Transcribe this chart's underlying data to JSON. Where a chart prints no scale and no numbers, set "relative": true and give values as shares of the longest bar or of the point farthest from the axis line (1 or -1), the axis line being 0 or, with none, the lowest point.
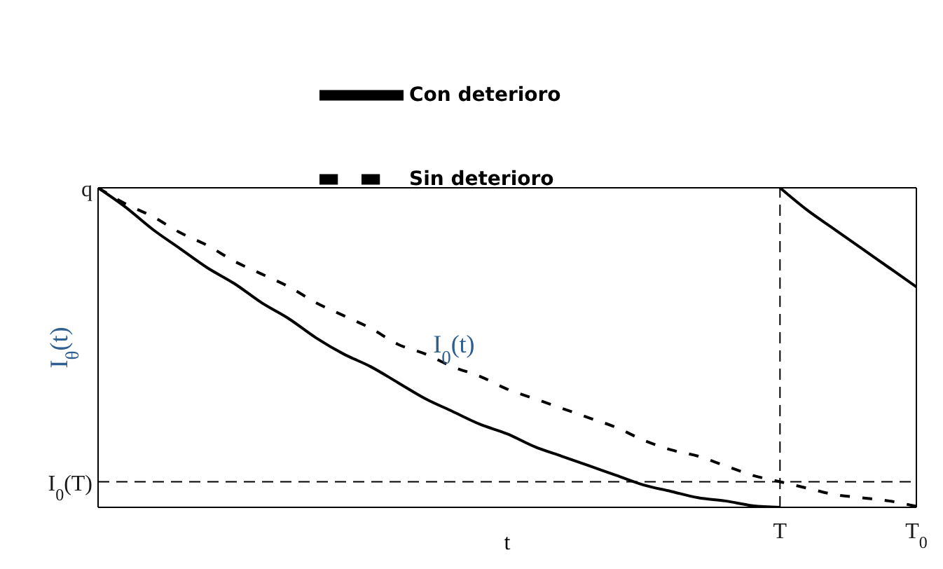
{
  "chart_data": {
    "type": "line",
    "relative": true,
    "xlabel": "t",
    "ylabel": "I$_{θ}$(t)",
    "categories": [
      null,
      null,
      null,
      null,
      null,
      null,
      null,
      null,
      null,
      null,
      null,
      null,
      null,
      null,
      null,
      null,
      null,
      null,
      null,
      null,
      null,
      null,
      null,
      null,
      null,
      "T",
      null,
      null,
      null,
      null,
      "T$_{0}$"
    ],
    "series": [
      {
        "name": "Sin deterioro",
        "color": "#000000",
        "line_style": "dashed",
        "values": [
          1,
          0.95,
          0.91,
          0.86,
          0.82,
          0.77,
          0.73,
          0.69,
          0.64,
          0.6,
          0.56,
          0.51,
          0.48,
          0.44,
          0.41,
          0.37,
          0.34,
          0.31,
          0.28,
          0.25,
          0.21,
          0.18,
          0.16,
          0.13,
          0.1,
          0.08,
          0.06,
          0.04,
          0.03,
          0.02,
          0.003
        ]
      },
      {
        "name": "Con deterioro",
        "color": "#000000",
        "line_style": "solid",
        "values": [
          1,
          0.94,
          0.87,
          0.81,
          0.75,
          0.7,
          0.64,
          0.59,
          0.53,
          0.48,
          0.44,
          0.39,
          0.34,
          0.3,
          0.26,
          0.23,
          0.19,
          0.16,
          0.13,
          0.1,
          0.07,
          0.05,
          0.03,
          0.02,
          0.005,
          0,
          null,
          null,
          null,
          null,
          null
        ]
      },
      {
        "color": "#000000",
        "line_style": "solid",
        "values": [
          null,
          null,
          null,
          null,
          null,
          null,
          null,
          null,
          null,
          null,
          null,
          null,
          null,
          null,
          null,
          null,
          null,
          null,
          null,
          null,
          null,
          null,
          null,
          null,
          null,
          1,
          0.93,
          0.87,
          0.81,
          0.75,
          0.69
        ]
      }
    ],
    "ref_lines": [
      {
        "axis": "y",
        "value": 0.08,
        "label": "I$_{0}$(T)",
        "line_style": "dashed"
      },
      {
        "axis": "y",
        "value": 1,
        "label": "q"
      },
      {
        "axis": "x",
        "value": "T",
        "line_style": "dashed"
      }
    ],
    "annotations": [
      {
        "text": "I$_{0}$(t)",
        "y": 0.44
      }
    ],
    "marker": "none",
    "legend": "top"
  }
}
